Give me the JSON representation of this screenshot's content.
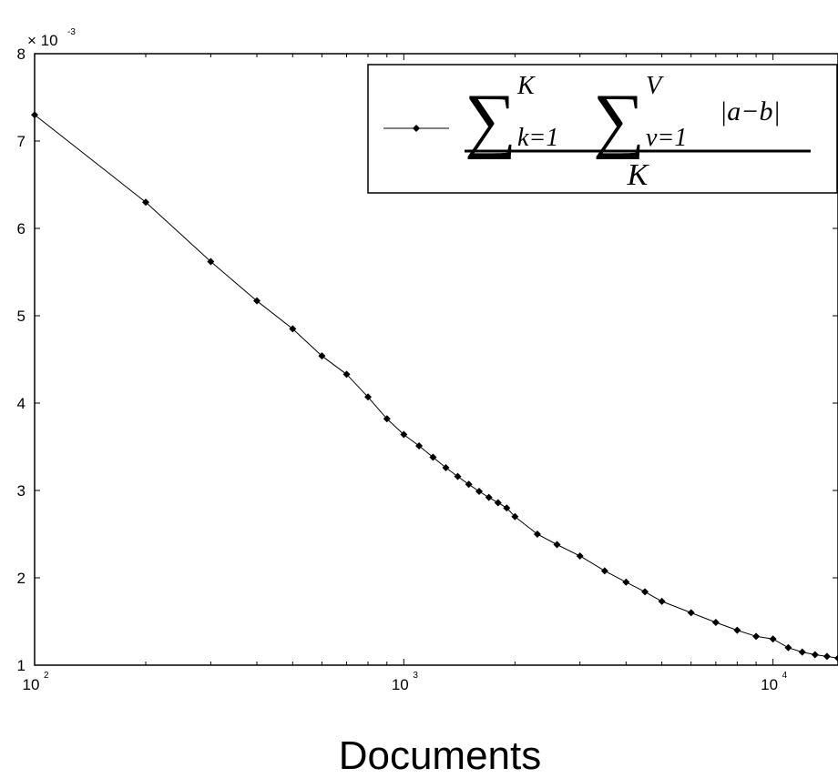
{
  "chart_data": {
    "type": "line",
    "title": "",
    "xlabel": "Documents",
    "ylabel": "",
    "x_scale": "log",
    "xlim": [
      100,
      15000
    ],
    "ylim": [
      1,
      8
    ],
    "y_multiplier_label": "× 10",
    "y_multiplier_exponent": "-3",
    "y_ticks": [
      "1",
      "2",
      "3",
      "4",
      "5",
      "6",
      "7",
      "8"
    ],
    "x_ticks": [
      {
        "base": "10",
        "exp": "2",
        "value": 100
      },
      {
        "base": "10",
        "exp": "3",
        "value": 1000
      },
      {
        "base": "10",
        "exp": "4",
        "value": 10000
      }
    ],
    "grid": false,
    "legend_position": "top-right",
    "legend": {
      "numerator_sum1_upper": "K",
      "numerator_sum1_lower": "k=1",
      "numerator_sum2_upper": "V",
      "numerator_sum2_lower": "v=1",
      "numerator_term": "|a−b|",
      "denominator": "K"
    },
    "series": [
      {
        "marker": "diamond",
        "color": "#000000",
        "x": [
          100,
          200,
          300,
          400,
          500,
          600,
          700,
          800,
          900,
          1000,
          1100,
          1200,
          1300,
          1400,
          1500,
          1600,
          1700,
          1800,
          1900,
          2000,
          2300,
          2600,
          3000,
          3500,
          4000,
          4500,
          5000,
          6000,
          7000,
          8000,
          9000,
          10000,
          11000,
          12000,
          13000,
          14000,
          15000
        ],
        "y": [
          7.3,
          6.3,
          5.62,
          5.17,
          4.85,
          4.54,
          4.33,
          4.07,
          3.82,
          3.64,
          3.51,
          3.38,
          3.26,
          3.16,
          3.07,
          2.99,
          2.92,
          2.86,
          2.8,
          2.7,
          2.5,
          2.38,
          2.25,
          2.08,
          1.95,
          1.84,
          1.73,
          1.6,
          1.49,
          1.4,
          1.33,
          1.3,
          1.2,
          1.15,
          1.12,
          1.1,
          1.08
        ]
      }
    ]
  }
}
